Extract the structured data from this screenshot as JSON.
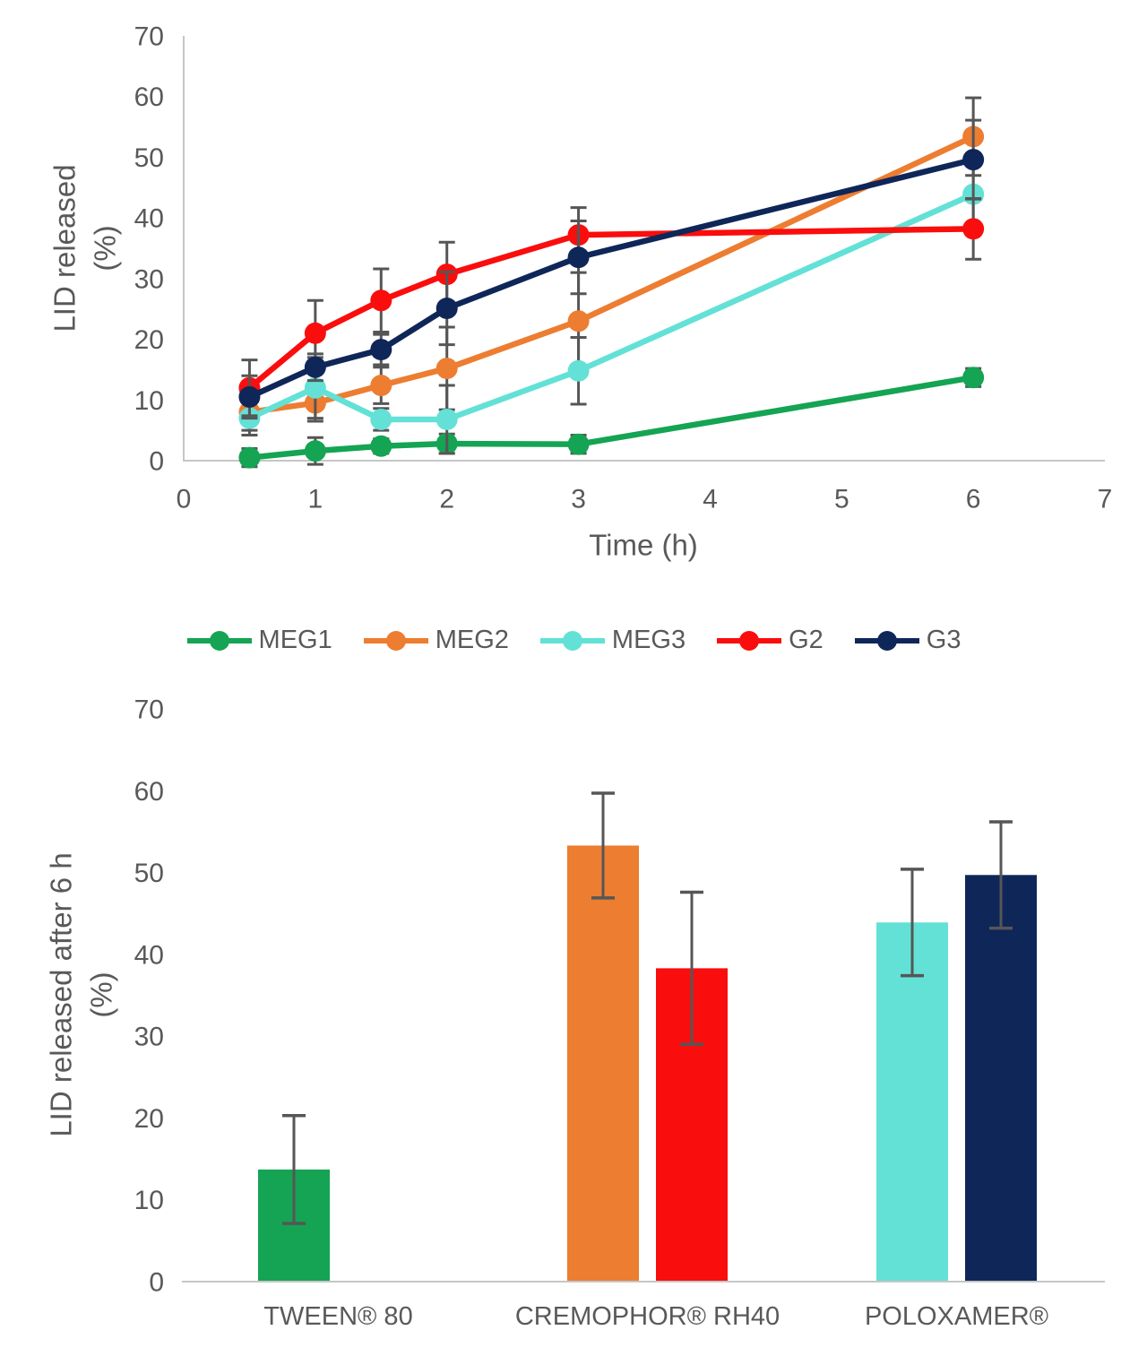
{
  "colors": {
    "axis_line": "#C6C6C6",
    "error_bar": "#565656",
    "text": "#595959"
  },
  "legend": {
    "position": "bottom-of-line-chart",
    "items": [
      "MEG1",
      "MEG2",
      "MEG3",
      "G2",
      "G3"
    ]
  },
  "chart_data": [
    {
      "type": "line",
      "title": "",
      "xlabel": "Time (h)",
      "ylabel_line1": "LID released",
      "ylabel_line2": "(%)",
      "xlim": [
        0,
        7
      ],
      "ylim": [
        0,
        70
      ],
      "x_ticks": [
        0,
        1,
        2,
        3,
        4,
        5,
        6,
        7
      ],
      "y_ticks": [
        0,
        10,
        20,
        30,
        40,
        50,
        60,
        70
      ],
      "grid": false,
      "legend_position": "bottom",
      "x": [
        0.5,
        1,
        1.5,
        2,
        3,
        6
      ],
      "series": [
        {
          "name": "MEG1",
          "color": "#14A453",
          "values": [
            0.5,
            1.6,
            2.4,
            2.8,
            2.7,
            13.7
          ],
          "errors": [
            1.5,
            2.2,
            1.2,
            1.6,
            1.5,
            1.5
          ]
        },
        {
          "name": "MEG2",
          "color": "#ED7D31",
          "values": [
            8,
            9.5,
            12.4,
            15.2,
            23,
            53.4
          ],
          "errors": [
            3,
            3,
            3,
            6.8,
            8,
            6.4
          ]
        },
        {
          "name": "MEG3",
          "color": "#63E1D6",
          "values": [
            7,
            12,
            6.8,
            6.8,
            14.8,
            43.9
          ],
          "errors": [
            2.8,
            5,
            1.8,
            5.6,
            5.5,
            6.5
          ]
        },
        {
          "name": "G2",
          "color": "#FA0D0D",
          "values": [
            12,
            21,
            26.4,
            30.7,
            37.2,
            38.2
          ],
          "errors": [
            4.6,
            5.4,
            5.2,
            5.3,
            4.5,
            5
          ]
        },
        {
          "name": "G3",
          "color": "#0F2658",
          "values": [
            10.5,
            15.4,
            18.3,
            25.1,
            33.5,
            49.6
          ],
          "errors": [
            3.5,
            2.2,
            2.5,
            6,
            6,
            6.5
          ]
        }
      ]
    },
    {
      "type": "bar",
      "title": "",
      "xlabel": "",
      "ylabel_line1": "LID released after 6 h",
      "ylabel_line2": "(%)",
      "ylim": [
        0,
        70
      ],
      "y_ticks": [
        0,
        10,
        20,
        30,
        40,
        50,
        60,
        70
      ],
      "grid": false,
      "categories": [
        "TWEEN® 80",
        "CREMOPHOR® RH40",
        "POLOXAMER®"
      ],
      "bars": [
        {
          "category": "TWEEN® 80",
          "series": "MEG1",
          "value": 13.7,
          "error": 6.6,
          "color": "#14A453"
        },
        {
          "category": "CREMOPHOR® RH40",
          "series": "MEG2",
          "value": 53.3,
          "error": 6.4,
          "color": "#ED7D31"
        },
        {
          "category": "CREMOPHOR® RH40",
          "series": "G2",
          "value": 38.3,
          "error": 9.3,
          "color": "#FA0D0D"
        },
        {
          "category": "POLOXAMER®",
          "series": "MEG3",
          "value": 43.9,
          "error": 6.5,
          "color": "#63E1D6"
        },
        {
          "category": "POLOXAMER®",
          "series": "G3",
          "value": 49.7,
          "error": 6.5,
          "color": "#0F2658"
        }
      ]
    }
  ]
}
